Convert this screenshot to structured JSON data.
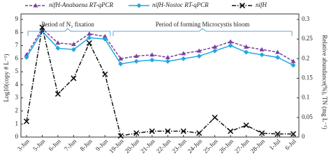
{
  "chart_data": {
    "type": "line",
    "categories": [
      "3-Jun",
      "5-Jun",
      "6-Jun",
      "7-Jun",
      "8-Jun",
      "9-Jun",
      "19-Jun",
      "20-Jun",
      "21-Jun",
      "22-Jun",
      "23-Jun",
      "24-Jun",
      "25-Jun",
      "26-Jun",
      "27-Jun",
      "28-Jun",
      "1-Jul",
      "6-Jul"
    ],
    "series": [
      {
        "name": "nifH-Anabaena RT-qPCR",
        "color": "#7b3fa0",
        "marker": "triangle",
        "dash": "dashed",
        "axis": "y",
        "values": [
          6.3,
          8.3,
          7.2,
          7.1,
          7.9,
          7.7,
          6.0,
          6.2,
          6.3,
          6.1,
          6.4,
          6.6,
          6.9,
          7.3,
          6.9,
          6.7,
          6.5,
          5.8
        ]
      },
      {
        "name": "nifH-Nostoc RT-qPCR",
        "color": "#1fa8e0",
        "marker": "diamond",
        "dash": "solid",
        "axis": "y",
        "values": [
          6.1,
          8.1,
          6.8,
          6.7,
          7.6,
          7.5,
          5.6,
          5.8,
          5.9,
          5.8,
          6.0,
          6.2,
          6.6,
          7.0,
          6.5,
          6.3,
          6.1,
          5.5
        ]
      },
      {
        "name": "nifH",
        "color": "#111111",
        "marker": "x",
        "dash": "dashdot",
        "axis": "y2",
        "values": [
          0.04,
          0.28,
          0.11,
          0.15,
          0.24,
          0.16,
          0.003,
          0.01,
          0.015,
          0.015,
          0.015,
          0.01,
          0.05,
          0.015,
          0.03,
          0.01,
          0.008,
          0.008
        ]
      }
    ],
    "ylabel": "Log10(copy # L⁻¹)",
    "y2label": "Relative abundance(%), TN (mg L⁻¹)",
    "ylim": [
      0,
      9
    ],
    "yticks": [
      0,
      1,
      2,
      3,
      4,
      5,
      6,
      7,
      8,
      9
    ],
    "y2lim": [
      0,
      0.3
    ],
    "y2ticks": [
      0,
      0.05,
      0.1,
      0.15,
      0.2,
      0.25,
      0.3
    ],
    "annotations": [
      "Period of N₂ fixation",
      "Period of forming Microcystis bloom"
    ]
  }
}
